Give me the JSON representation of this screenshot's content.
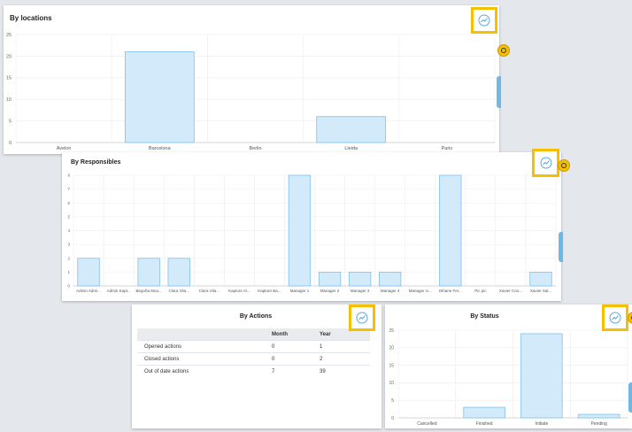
{
  "panels": {
    "locations": {
      "title": "By locations"
    },
    "responsibles": {
      "title": "By Responsibles"
    },
    "actions": {
      "title": "By Actions",
      "columns": [
        "",
        "Month",
        "Year"
      ],
      "rows": [
        {
          "label": "Opened actions",
          "month": "0",
          "year": "1"
        },
        {
          "label": "Closed actions",
          "month": "0",
          "year": "2"
        },
        {
          "label": "Out of date actions",
          "month": "7",
          "year": "39"
        }
      ]
    },
    "status": {
      "title": "By Status"
    }
  },
  "icons": {
    "chart_toggle": "chart-line-icon",
    "side_coin": "help-coin-icon"
  },
  "colors": {
    "highlight": "#f5c000",
    "bar_fill": "#d3eafa",
    "bar_stroke": "#7cc0ee",
    "accent_tab": "#6cb8e6"
  },
  "chart_data": [
    {
      "id": "locations",
      "type": "bar",
      "title": "By locations",
      "categories": [
        "Avelon",
        "Barcelona",
        "Berlin",
        "Lleida",
        "Paris"
      ],
      "values": [
        0,
        21,
        0,
        6,
        0
      ],
      "yticks": [
        0,
        5,
        10,
        15,
        20,
        25
      ],
      "ylim": [
        0,
        25
      ],
      "grid": true
    },
    {
      "id": "responsibles",
      "type": "bar",
      "title": "By Responsibles",
      "categories": [
        "Admin Admi...",
        "Admin Kapt...",
        "Begoña Mou...",
        "Clara Vila...",
        "Clara Vila...",
        "Kapture Al...",
        "Kapture Ba...",
        "Manager 1",
        "Manager 2",
        "Manager 3",
        "Manager 4",
        "Manager U...",
        "Oihane Fer...",
        "Pic pic",
        "Xavier Con...",
        "Xavier Sal..."
      ],
      "values": [
        2,
        0,
        2,
        2,
        0,
        0,
        0,
        8,
        1,
        1,
        1,
        0,
        8,
        0,
        0,
        1
      ],
      "yticks": [
        0,
        1,
        2,
        3,
        4,
        5,
        6,
        7,
        8
      ],
      "ylim": [
        0,
        8
      ],
      "grid": true
    },
    {
      "id": "status",
      "type": "bar",
      "title": "By Status",
      "categories": [
        "Cancelled",
        "Finished",
        "Initiate",
        "Pending"
      ],
      "values": [
        0,
        3,
        24,
        1
      ],
      "yticks": [
        0,
        5,
        10,
        15,
        20,
        25
      ],
      "ylim": [
        0,
        25
      ],
      "grid": true
    }
  ]
}
